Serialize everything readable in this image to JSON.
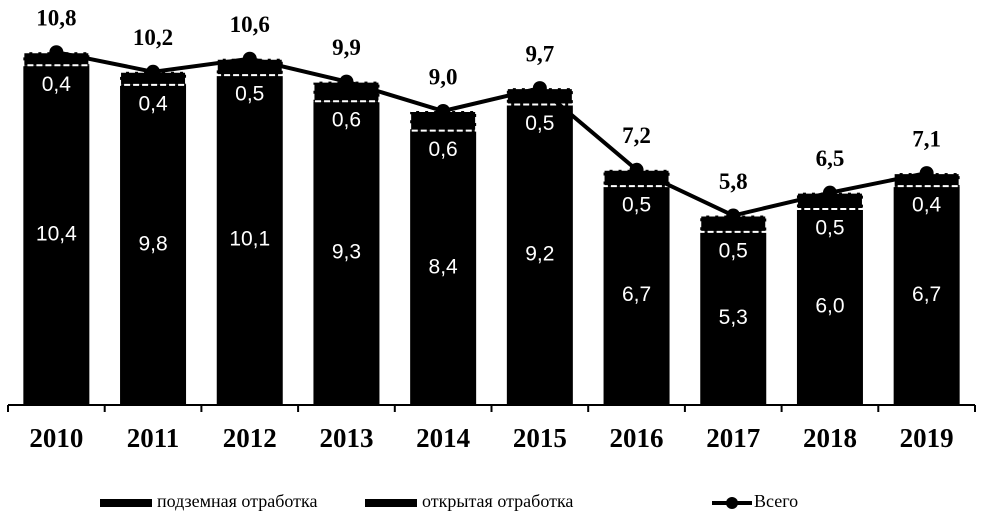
{
  "chart_data": {
    "type": "stacked-bar-line",
    "categories": [
      "2010",
      "2011",
      "2012",
      "2013",
      "2014",
      "2015",
      "2016",
      "2017",
      "2018",
      "2019"
    ],
    "series": [
      {
        "name": "подземная отработка",
        "color": "#000000",
        "kind": "bar",
        "values": [
          10.4,
          9.8,
          10.1,
          9.3,
          8.4,
          9.2,
          6.7,
          5.3,
          6.0,
          6.7
        ],
        "value_labels": [
          "10,4",
          "9,8",
          "10,1",
          "9,3",
          "8,4",
          "9,2",
          "6,7",
          "5,3",
          "6,0",
          "6,7"
        ]
      },
      {
        "name": "открытая отработка",
        "color": "#000000",
        "kind": "bar",
        "values": [
          0.4,
          0.4,
          0.5,
          0.6,
          0.6,
          0.5,
          0.5,
          0.5,
          0.5,
          0.4
        ],
        "value_labels": [
          "0,4",
          "0,4",
          "0,5",
          "0,6",
          "0,6",
          "0,5",
          "0,5",
          "0,5",
          "0,5",
          "0,4"
        ]
      },
      {
        "name": "Всего",
        "color": "#000000",
        "kind": "line",
        "values": [
          10.8,
          10.2,
          10.6,
          9.9,
          9.0,
          9.7,
          7.2,
          5.8,
          6.5,
          7.1
        ],
        "value_labels": [
          "10,8",
          "10,2",
          "10,6",
          "9,9",
          "9,0",
          "9,7",
          "7,2",
          "5,8",
          "6,5",
          "7,1"
        ]
      }
    ],
    "ylim": [
      0,
      12
    ]
  }
}
